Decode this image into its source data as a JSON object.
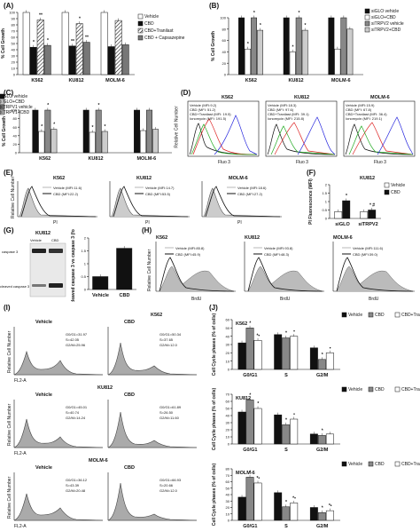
{
  "panels": {
    "A": {
      "label": "(A)"
    },
    "B": {
      "label": "(B)"
    },
    "C": {
      "label": "(C)"
    },
    "D": {
      "label": "(D)"
    },
    "E": {
      "label": "(E)"
    },
    "F": {
      "label": "(F)"
    },
    "G": {
      "label": "(G)"
    },
    "H": {
      "label": "(H)"
    },
    "I": {
      "label": "(I)"
    },
    "J": {
      "label": "(J)"
    }
  },
  "chart_data": [
    {
      "panel": "A",
      "type": "bar",
      "ylabel": "% Cell Growth",
      "ylim": [
        0,
        100
      ],
      "yticks": [
        "0",
        "10",
        "20",
        "30",
        "40",
        "50",
        "60",
        "70",
        "80",
        "90",
        "100"
      ],
      "categories": [
        "K562",
        "KU812",
        "MOLM-6"
      ],
      "series": [
        {
          "name": "Vehicle",
          "values": [
            100,
            100,
            100
          ],
          "fill": "#ffffff"
        },
        {
          "name": "CBD",
          "values": [
            44,
            46,
            45
          ],
          "fill": "#111111"
        },
        {
          "name": "CBD+Tranilast",
          "values": [
            88,
            82,
            87
          ],
          "fill": "hatch"
        },
        {
          "name": "CBD + Capsazepine",
          "values": [
            47,
            52,
            48
          ],
          "fill": "#777777"
        }
      ],
      "markers": [
        "*",
        "**",
        "*",
        "**",
        "*",
        "**"
      ]
    },
    {
      "panel": "B",
      "type": "bar",
      "ylabel": "% Cell Growth",
      "ylim": [
        0,
        100
      ],
      "yticks": [
        "0",
        "20",
        "40",
        "60",
        "80",
        "100"
      ],
      "categories": [
        "K562",
        "KU812",
        "MOLM-6"
      ],
      "series": [
        {
          "name": "siGLO vehicle",
          "values": [
            100,
            100,
            100
          ],
          "fill": "#111111"
        },
        {
          "name": "siGLO+CBD",
          "values": [
            45,
            40,
            45
          ],
          "fill": "#ffffff"
        },
        {
          "name": "siTRPV2 vehicle",
          "values": [
            100,
            100,
            100
          ],
          "fill": "#888888"
        },
        {
          "name": "siTRPV2+CBD",
          "values": [
            78,
            78,
            80
          ],
          "fill": "#cccccc"
        }
      ],
      "markers": [
        "*",
        "*",
        "*",
        "*",
        "*",
        "*"
      ]
    },
    {
      "panel": "C",
      "type": "bar",
      "ylabel": "% Cell Growth",
      "ylim": [
        0,
        100
      ],
      "yticks": [
        "0",
        "20",
        "40",
        "60",
        "80",
        "100"
      ],
      "categories": [
        "K562",
        "KU812",
        "MOLM-6"
      ],
      "series": [
        {
          "name": "siGLO vehicle",
          "values": [
            100,
            100,
            100
          ],
          "fill": "#111111"
        },
        {
          "name": "siGLO+CBD",
          "values": [
            50,
            48,
            52
          ],
          "fill": "#ffffff"
        },
        {
          "name": "siTRPV1 vehicle",
          "values": [
            100,
            100,
            100
          ],
          "fill": "#888888"
        },
        {
          "name": "siTRPV1+CBD",
          "values": [
            55,
            50,
            55
          ],
          "fill": "#cccccc"
        }
      ],
      "markers": [
        "*",
        "*",
        "*",
        "*",
        "*",
        "*"
      ]
    },
    {
      "panel": "F",
      "type": "bar",
      "title": "KU812",
      "ylabel": "PI Fluorescence (MFI)",
      "ylim": [
        0,
        2
      ],
      "yticks": [
        "0",
        "0.5",
        "1",
        "1.5",
        "2"
      ],
      "categories": [
        "siGLO",
        "siTRPV2"
      ],
      "series": [
        {
          "name": "Vehicle",
          "values": [
            0.4,
            0.4
          ],
          "fill": "#ffffff"
        },
        {
          "name": "CBD",
          "values": [
            1.05,
            0.5
          ],
          "fill": "#111111"
        }
      ],
      "markers": [
        "*",
        "* #"
      ]
    },
    {
      "panel": "G",
      "type": "bar",
      "ylabel": "cleaved caspase 3 vs caspase 3 (fold)",
      "ylim": [
        0,
        2
      ],
      "yticks": [
        "0",
        "0.5",
        "1",
        "1.5",
        "2"
      ],
      "categories": [
        "Vehicle",
        "CBD"
      ],
      "values": [
        0.5,
        1.6
      ],
      "markers": [
        "*"
      ]
    },
    {
      "panel": "J",
      "type": "bar",
      "title": "K562",
      "ylabel": "Cell Cycle phases (% of cells)",
      "ylim": [
        0,
        60
      ],
      "yticks": [
        "0",
        "10",
        "20",
        "30",
        "40",
        "50",
        "60"
      ],
      "categories": [
        "G0/G1",
        "S",
        "G2/M"
      ],
      "series": [
        {
          "name": "Vehicle",
          "values": [
            32,
            42,
            26
          ],
          "fill": "#111111"
        },
        {
          "name": "CBD",
          "values": [
            50,
            38,
            12
          ],
          "fill": "#888888"
        },
        {
          "name": "CBD+Tranilast",
          "values": [
            35,
            40,
            20
          ],
          "fill": "#ffffff"
        }
      ],
      "markers": [
        "*",
        "*•",
        "*",
        "•",
        "*",
        "•"
      ]
    },
    {
      "panel": "J",
      "type": "bar",
      "title": "KU812",
      "ylabel": "Cell Cycle phases (% of cells)",
      "ylim": [
        0,
        70
      ],
      "yticks": [
        "0",
        "10",
        "20",
        "30",
        "40",
        "50",
        "60",
        "70"
      ],
      "categories": [
        "G0/G1",
        "S",
        "G2/M"
      ],
      "series": [
        {
          "name": "Vehicle",
          "values": [
            45,
            41,
            14
          ],
          "fill": "#111111"
        },
        {
          "name": "CBD",
          "values": [
            62,
            27,
            12
          ],
          "fill": "#888888"
        },
        {
          "name": "CBD+Tranilast",
          "values": [
            50,
            35,
            14
          ],
          "fill": "#ffffff"
        }
      ],
      "markers": [
        "*",
        "*",
        "*",
        "•",
        "*"
      ]
    },
    {
      "panel": "J",
      "type": "bar",
      "title": "MOLM-6",
      "ylabel": "Cell Cycle phases (% of cells)",
      "ylim": [
        0,
        80
      ],
      "yticks": [
        "0",
        "10",
        "20",
        "30",
        "40",
        "50",
        "60",
        "70",
        "80"
      ],
      "categories": [
        "G0/G1",
        "S",
        "G2/M"
      ],
      "series": [
        {
          "name": "Vehicle",
          "values": [
            36,
            43,
            20
          ],
          "fill": "#111111"
        },
        {
          "name": "CBD",
          "values": [
            67,
            21,
            12
          ],
          "fill": "#888888"
        },
        {
          "name": "CBD+Tranilast",
          "values": [
            58,
            27,
            15
          ],
          "fill": "#ffffff"
        }
      ],
      "markers": [
        "*",
        "*•",
        "*",
        "*•",
        "*",
        "*•"
      ]
    }
  ],
  "D": {
    "ylabel": "Relative Cell Number",
    "xlabel": "Fluo 3",
    "plots": [
      {
        "title": "K562",
        "legend": [
          "Vehicle (MFI:9.2)",
          "CBD (MFI: 51.2)",
          "CBD+Tranilast (MFI: 19.5)",
          "Ionomycin (MFI: 191.5)"
        ]
      },
      {
        "title": "KU812",
        "legend": [
          "Vehicle (MFI:18.3)",
          "CBD (MFI: 97.6)",
          "CBD+Tranilast (MFI: 39.1)",
          "Ionomycin (MFI: 215.8)"
        ]
      },
      {
        "title": "MOLM-6",
        "legend": [
          "Vehicle (MFI:15.9)",
          "CBD (MFI: 67.8)",
          "CBD+Tranilast (MFI: 36.4)",
          "Ionomycin (MFI: 219.1)"
        ]
      }
    ]
  },
  "E": {
    "ylabel": "Relative Cell Number",
    "xlabel": "PI",
    "plots": [
      {
        "title": "K562",
        "legend": [
          "Vehicle (MFI:11.6)",
          "CBD (MFI:22.2)"
        ]
      },
      {
        "title": "KU812",
        "legend": [
          "Vehicle (MFI:14.7)",
          "CBD (MFI:53.5)"
        ]
      },
      {
        "title": "MOLM-6",
        "legend": [
          "Vehicle (MFI:18.6)",
          "CBD (MFI:27.2)"
        ]
      }
    ]
  },
  "G": {
    "title": "KU812",
    "lanes": [
      "Vehicle",
      "CBD"
    ],
    "bands": [
      "caspase 3",
      "cleaved caspase 3"
    ]
  },
  "H": {
    "ylabel": "Relative Cell Number",
    "xlabel": "BrdU",
    "plots": [
      {
        "title": "K562",
        "legend": [
          "Vehicle (MFI:85.8)",
          "CBD (MFI:45.9)"
        ]
      },
      {
        "title": "KU812",
        "legend": [
          "Vehicle (MFI:93.8)",
          "CBD (MFI:48.3)"
        ]
      },
      {
        "title": "MOLM-6",
        "legend": [
          "Vehicle (MFI:111.6)",
          "CBD (MFI:39.0)"
        ]
      }
    ]
  },
  "I": {
    "ylabel": "Relative Cell Number",
    "xlabel": "FL2-A",
    "rows": [
      {
        "cell": "K562",
        "vehicle": [
          "G0/G1=31.97",
          "S=42.05",
          "G2/M=25.96"
        ],
        "cbd": [
          "G0/G1=50.34",
          "S=37.65",
          "G2/M=12.0"
        ]
      },
      {
        "cell": "KU812",
        "vehicle": [
          "G0/G1=45.01",
          "S=40.74",
          "G2/M=14.24"
        ],
        "cbd": [
          "G0/G1=61.89",
          "S=26.50",
          "G2/M=11.60"
        ]
      },
      {
        "cell": "MOLM-6",
        "vehicle": [
          "G0/G1=36.12",
          "S=43.39",
          "G2/M=20.48"
        ],
        "cbd": [
          "G0/G1=66.93",
          "S=20.66",
          "G2/M=12.0"
        ]
      }
    ],
    "col_vehicle": "Vehicle",
    "col_cbd": "CBD"
  }
}
